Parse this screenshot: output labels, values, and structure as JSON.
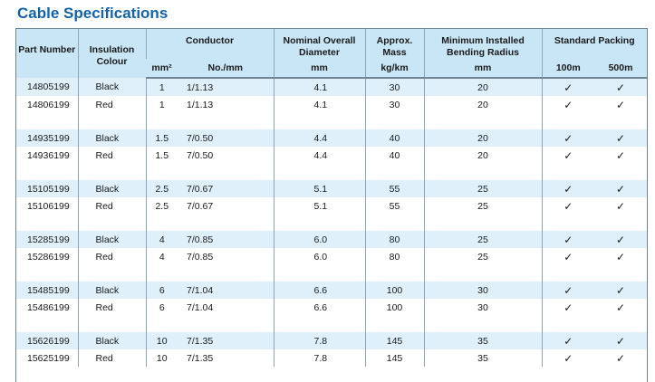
{
  "title": "Cable Specifications",
  "header": {
    "part_number": "Part Number",
    "insulation_colour": "Insulation Colour",
    "conductor": "Conductor",
    "conductor_mm": "mm²",
    "conductor_no": "No./mm",
    "nominal": "Nominal Overall Diameter",
    "nominal_unit": "mm",
    "mass": "Approx. Mass",
    "mass_unit": "kg/km",
    "bending": "Minimum Installed Bending Radius",
    "bending_unit": "mm",
    "packing": "Standard Packing",
    "pack_100": "100m",
    "pack_500": "500m"
  },
  "rows": [
    {
      "part": "14805199",
      "colour": "Black",
      "mm2": "1",
      "no_mm": "1/1.13",
      "diameter": "4.1",
      "mass": "30",
      "radius": "20",
      "p100": "✓",
      "p500": "✓"
    },
    {
      "part": "14806199",
      "colour": "Red",
      "mm2": "1",
      "no_mm": "1/1.13",
      "diameter": "4.1",
      "mass": "30",
      "radius": "20",
      "p100": "✓",
      "p500": "✓"
    },
    {
      "part": "14935199",
      "colour": "Black",
      "mm2": "1.5",
      "no_mm": "7/0.50",
      "diameter": "4.4",
      "mass": "40",
      "radius": "20",
      "p100": "✓",
      "p500": "✓"
    },
    {
      "part": "14936199",
      "colour": "Red",
      "mm2": "1.5",
      "no_mm": "7/0.50",
      "diameter": "4.4",
      "mass": "40",
      "radius": "20",
      "p100": "✓",
      "p500": "✓"
    },
    {
      "part": "15105199",
      "colour": "Black",
      "mm2": "2.5",
      "no_mm": "7/0.67",
      "diameter": "5.1",
      "mass": "55",
      "radius": "25",
      "p100": "✓",
      "p500": "✓"
    },
    {
      "part": "15106199",
      "colour": "Red",
      "mm2": "2.5",
      "no_mm": "7/0.67",
      "diameter": "5.1",
      "mass": "55",
      "radius": "25",
      "p100": "✓",
      "p500": "✓"
    },
    {
      "part": "15285199",
      "colour": "Black",
      "mm2": "4",
      "no_mm": "7/0.85",
      "diameter": "6.0",
      "mass": "80",
      "radius": "25",
      "p100": "✓",
      "p500": "✓"
    },
    {
      "part": "15286199",
      "colour": "Red",
      "mm2": "4",
      "no_mm": "7/0.85",
      "diameter": "6.0",
      "mass": "80",
      "radius": "25",
      "p100": "✓",
      "p500": "✓"
    },
    {
      "part": "15485199",
      "colour": "Black",
      "mm2": "6",
      "no_mm": "7/1.04",
      "diameter": "6.6",
      "mass": "100",
      "radius": "30",
      "p100": "✓",
      "p500": "✓"
    },
    {
      "part": "15486199",
      "colour": "Red",
      "mm2": "6",
      "no_mm": "7/1.04",
      "diameter": "6.6",
      "mass": "100",
      "radius": "30",
      "p100": "✓",
      "p500": "✓"
    },
    {
      "part": "15626199",
      "colour": "Black",
      "mm2": "10",
      "no_mm": "7/1.35",
      "diameter": "7.8",
      "mass": "145",
      "radius": "35",
      "p100": "✓",
      "p500": "✓"
    },
    {
      "part": "15625199",
      "colour": "Red",
      "mm2": "10",
      "no_mm": "7/1.35",
      "diameter": "7.8",
      "mass": "145",
      "radius": "35",
      "p100": "✓",
      "p500": "✓"
    }
  ]
}
